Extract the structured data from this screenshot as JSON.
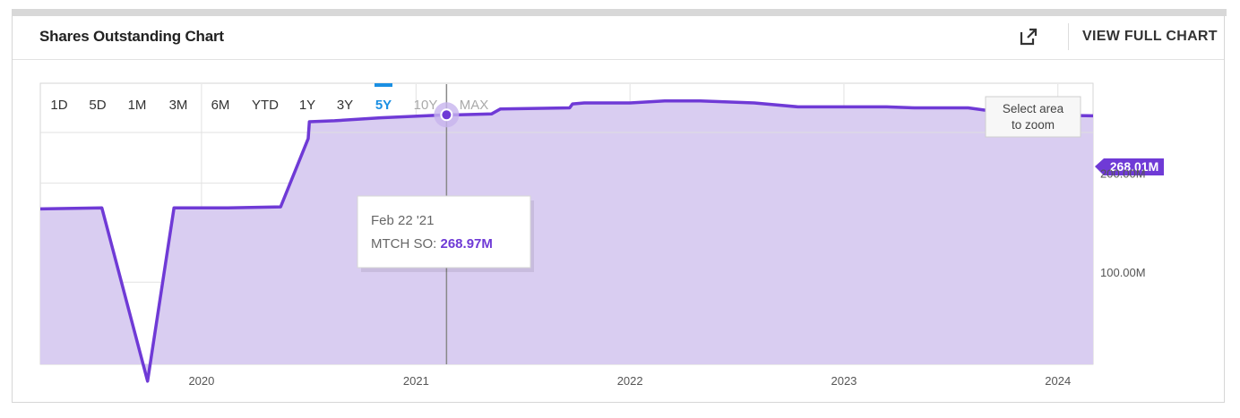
{
  "header": {
    "title": "Shares Outstanding Chart",
    "full_chart_label": "VIEW FULL CHART",
    "external_icon": "external-link-icon"
  },
  "ranges": {
    "items": [
      "1D",
      "5D",
      "1M",
      "3M",
      "6M",
      "YTD",
      "1Y",
      "3Y",
      "5Y",
      "10Y",
      "MAX"
    ],
    "active": "5Y",
    "disabled": [
      "10Y",
      "MAX"
    ]
  },
  "zoom_hint": [
    "Select area",
    "to zoom"
  ],
  "tooltip": {
    "date": "Feb 22 '21",
    "series_label": "MTCH SO: ",
    "value": "268.97M"
  },
  "last_value_label": "268.01M",
  "colors": {
    "line": "#6f3ad6",
    "fill": "#d9cdf1",
    "accent_blue": "#1a8fe3",
    "axis_text": "#555555"
  },
  "chart_data": {
    "type": "area",
    "series": [
      {
        "name": "MTCH SO",
        "points": [
          [
            "2019-04-01",
            174
          ],
          [
            "2019-07-15",
            175
          ],
          [
            "2019-10-01",
            0
          ],
          [
            "2019-11-15",
            175
          ],
          [
            "2020-02-15",
            175
          ],
          [
            "2020-05-15",
            176
          ],
          [
            "2020-07-01",
            245
          ],
          [
            "2020-07-03",
            262
          ],
          [
            "2020-08-15",
            263
          ],
          [
            "2020-11-01",
            266
          ],
          [
            "2021-02-22",
            269
          ],
          [
            "2021-03-15",
            269
          ],
          [
            "2021-05-10",
            270
          ],
          [
            "2021-05-25",
            275
          ],
          [
            "2021-09-20",
            276
          ],
          [
            "2021-09-25",
            280
          ],
          [
            "2021-10-15",
            281
          ],
          [
            "2022-01-01",
            281
          ],
          [
            "2022-03-01",
            283
          ],
          [
            "2022-05-01",
            283
          ],
          [
            "2022-08-01",
            281
          ],
          [
            "2022-10-15",
            277
          ],
          [
            "2023-01-01",
            277
          ],
          [
            "2023-03-15",
            277
          ],
          [
            "2023-05-01",
            276
          ],
          [
            "2023-08-01",
            276
          ],
          [
            "2023-10-15",
            270
          ],
          [
            "2024-01-01",
            268.5
          ],
          [
            "2024-03-01",
            268.01
          ]
        ]
      }
    ],
    "x_ticks": [
      "2020",
      "2021",
      "2022",
      "2023",
      "2024"
    ],
    "y_ticks": [
      "100.00M",
      "200.00M"
    ],
    "y_range": [
      17,
      300
    ],
    "grid": true,
    "area_fill": true
  }
}
